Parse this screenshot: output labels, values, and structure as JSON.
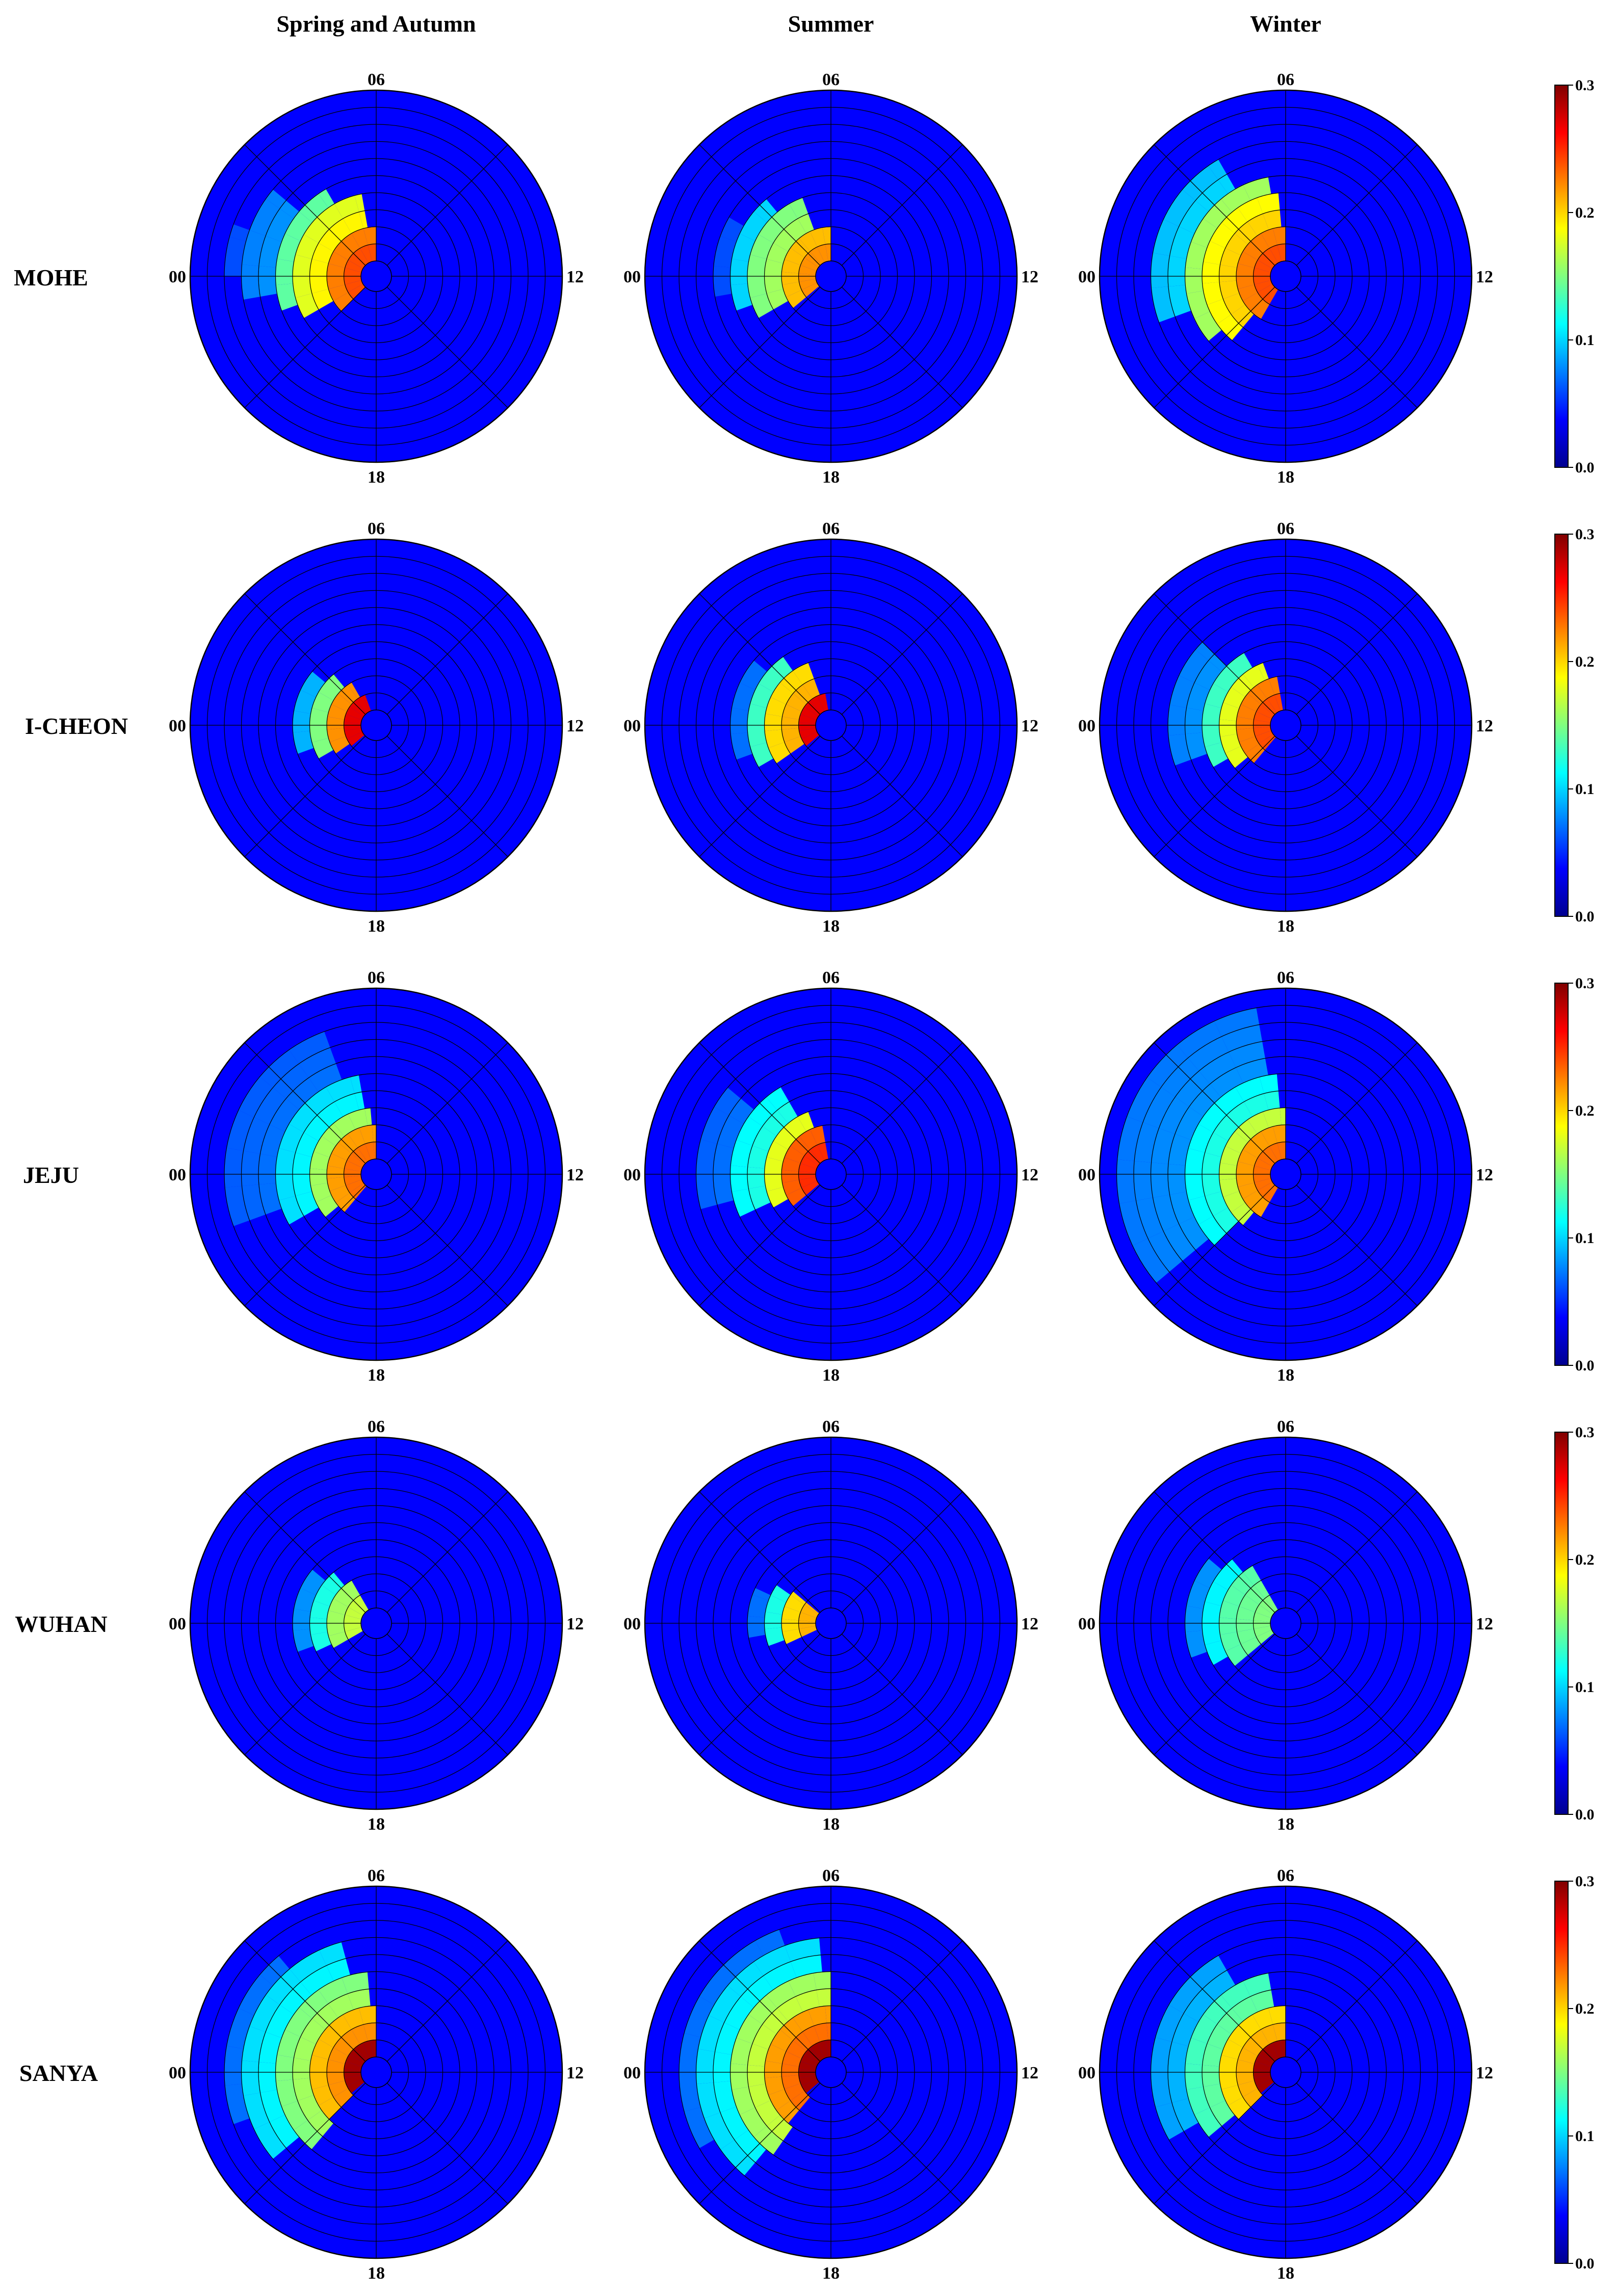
{
  "columns": [
    "Spring and Autumn",
    "Summer",
    "Winter"
  ],
  "rows": [
    "MOHE",
    "I-CHEON",
    "JEJU",
    "WUHAN",
    "SANYA"
  ],
  "dial_labels": {
    "top": "06",
    "left": "00",
    "right": "12",
    "bottom": "18"
  },
  "colorbar": {
    "ticks": [
      "0.0",
      "0.1",
      "0.2",
      "0.3"
    ],
    "range": [
      0,
      0.3
    ],
    "colormap": "jet",
    "stops": [
      "#00008f",
      "#0000ff",
      "#0080ff",
      "#00ffff",
      "#80ff80",
      "#ffff00",
      "#ff8000",
      "#ff0000",
      "#800000"
    ]
  },
  "colors": {
    "background_fill": "#0000ff",
    "grid": "#000000",
    "ring_hole": "#0000ff"
  },
  "chart_data": {
    "type": "heatmap",
    "subtype": "polar occurrence rose (hour-of-day angle, radial bins), 5 sites x 3 seasons",
    "angle_labels": [
      "00",
      "06",
      "12",
      "18"
    ],
    "radial_bins": 10,
    "value_range": [
      0,
      0.3
    ],
    "note_ranges": "Each panel lists [angle_start_deg, angle_end_deg, radial_bin_start, radial_bin_end, value]; angle measured clockwise from 00 at left (06 top, 12 right, 18 bottom).",
    "panels": [
      {
        "row": "MOHE",
        "col": "Spring and Autumn",
        "peak": 0.24,
        "sectors": [
          [
            -45,
            90,
            0,
            2,
            0.24
          ],
          [
            -30,
            80,
            2,
            4,
            0.19
          ],
          [
            -20,
            60,
            4,
            5,
            0.14
          ],
          [
            -10,
            40,
            5,
            7,
            0.08
          ],
          [
            0,
            20,
            7,
            8,
            0.06
          ]
        ]
      },
      {
        "row": "MOHE",
        "col": "Summer",
        "peak": 0.22,
        "sectors": [
          [
            -40,
            90,
            0,
            2,
            0.22
          ],
          [
            -30,
            70,
            2,
            4,
            0.16
          ],
          [
            -20,
            50,
            4,
            5,
            0.1
          ],
          [
            -10,
            30,
            5,
            6,
            0.06
          ]
        ]
      },
      {
        "row": "MOHE",
        "col": "Winter",
        "peak": 0.24,
        "sectors": [
          [
            -60,
            90,
            0,
            2,
            0.24
          ],
          [
            -50,
            85,
            2,
            4,
            0.2
          ],
          [
            -40,
            80,
            4,
            5,
            0.16
          ],
          [
            -20,
            60,
            5,
            7,
            0.1
          ]
        ]
      },
      {
        "row": "I-CHEON",
        "col": "Spring and Autumn",
        "peak": 0.27,
        "sectors": [
          [
            -40,
            70,
            0,
            1,
            0.27
          ],
          [
            -35,
            60,
            1,
            2,
            0.22
          ],
          [
            -30,
            50,
            2,
            3,
            0.15
          ],
          [
            -20,
            40,
            3,
            4,
            0.09
          ]
        ]
      },
      {
        "row": "I-CHEON",
        "col": "Summer",
        "peak": 0.27,
        "sectors": [
          [
            -40,
            80,
            0,
            1,
            0.27
          ],
          [
            -35,
            70,
            1,
            3,
            0.21
          ],
          [
            -30,
            55,
            3,
            4,
            0.13
          ],
          [
            -20,
            40,
            4,
            5,
            0.07
          ]
        ]
      },
      {
        "row": "I-CHEON",
        "col": "Winter",
        "peak": 0.24,
        "sectors": [
          [
            -50,
            80,
            0,
            2,
            0.24
          ],
          [
            -40,
            70,
            2,
            3,
            0.18
          ],
          [
            -30,
            60,
            3,
            4,
            0.13
          ],
          [
            -20,
            45,
            4,
            6,
            0.08
          ]
        ]
      },
      {
        "row": "JEJU",
        "col": "Spring and Autumn",
        "peak": 0.23,
        "sectors": [
          [
            -50,
            90,
            0,
            2,
            0.23
          ],
          [
            -40,
            85,
            2,
            3,
            0.16
          ],
          [
            -30,
            80,
            3,
            5,
            0.11
          ],
          [
            -20,
            70,
            5,
            8,
            0.07
          ]
        ]
      },
      {
        "row": "JEJU",
        "col": "Summer",
        "peak": 0.25,
        "sectors": [
          [
            -40,
            80,
            0,
            2,
            0.25
          ],
          [
            -30,
            70,
            2,
            3,
            0.18
          ],
          [
            -25,
            60,
            3,
            5,
            0.12
          ],
          [
            -15,
            40,
            5,
            7,
            0.07
          ]
        ]
      },
      {
        "row": "JEJU",
        "col": "Winter",
        "peak": 0.23,
        "sectors": [
          [
            -60,
            90,
            0,
            2,
            0.23
          ],
          [
            -50,
            90,
            2,
            3,
            0.17
          ],
          [
            -45,
            85,
            3,
            5,
            0.12
          ],
          [
            -40,
            80,
            5,
            9,
            0.08
          ]
        ]
      },
      {
        "row": "WUHAN",
        "col": "Spring and Autumn",
        "peak": 0.17,
        "sectors": [
          [
            -30,
            60,
            0,
            2,
            0.17
          ],
          [
            -25,
            50,
            2,
            3,
            0.12
          ],
          [
            -20,
            40,
            3,
            4,
            0.08
          ]
        ]
      },
      {
        "row": "WUHAN",
        "col": "Summer",
        "peak": 0.21,
        "sectors": [
          [
            -25,
            40,
            0,
            2,
            0.21
          ],
          [
            -20,
            35,
            2,
            3,
            0.12
          ],
          [
            -10,
            25,
            3,
            4,
            0.07
          ]
        ]
      },
      {
        "row": "WUHAN",
        "col": "Winter",
        "peak": 0.15,
        "sectors": [
          [
            -40,
            60,
            0,
            3,
            0.15
          ],
          [
            -30,
            50,
            3,
            4,
            0.11
          ],
          [
            -20,
            40,
            4,
            5,
            0.08
          ]
        ]
      },
      {
        "row": "SANYA",
        "col": "Spring and Autumn",
        "peak": 0.29,
        "sectors": [
          [
            -40,
            90,
            0,
            1,
            0.29
          ],
          [
            -45,
            90,
            1,
            3,
            0.22
          ],
          [
            -50,
            85,
            3,
            5,
            0.16
          ],
          [
            -40,
            75,
            5,
            7,
            0.11
          ],
          [
            -20,
            50,
            7,
            8,
            0.07
          ]
        ]
      },
      {
        "row": "SANYA",
        "col": "Summer",
        "peak": 0.29,
        "sectors": [
          [
            -40,
            90,
            0,
            1,
            0.29
          ],
          [
            -50,
            90,
            1,
            3,
            0.23
          ],
          [
            -55,
            90,
            3,
            5,
            0.17
          ],
          [
            -50,
            85,
            5,
            7,
            0.11
          ],
          [
            -30,
            70,
            7,
            8,
            0.07
          ]
        ]
      },
      {
        "row": "SANYA",
        "col": "Winter",
        "peak": 0.29,
        "sectors": [
          [
            -40,
            90,
            0,
            1,
            0.29
          ],
          [
            -45,
            90,
            1,
            3,
            0.21
          ],
          [
            -40,
            80,
            3,
            5,
            0.14
          ],
          [
            -30,
            60,
            5,
            7,
            0.09
          ]
        ]
      }
    ]
  }
}
